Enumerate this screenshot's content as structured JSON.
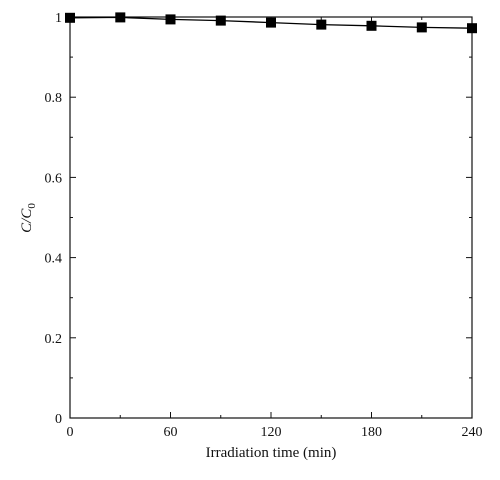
{
  "chart_data": {
    "type": "line",
    "xlabel": "Irradiation time (min)",
    "ylabel": "C/C",
    "ylabel_subscript": "0",
    "xlim": [
      0,
      240
    ],
    "ylim": [
      0,
      1.0
    ],
    "x_ticks": [
      0,
      60,
      120,
      180,
      240
    ],
    "y_ticks": [
      0,
      0.2,
      0.4,
      0.6,
      0.8,
      1
    ],
    "x_tick_labels": [
      "0",
      "60",
      "120",
      "180",
      "240"
    ],
    "y_tick_labels": [
      "0",
      "0.2",
      "0.4",
      "0.6",
      "0.8",
      "1"
    ],
    "grid": false,
    "marker": "square",
    "color": "#000000",
    "series": [
      {
        "x": [
          0,
          30,
          60,
          90,
          120,
          150,
          180,
          210,
          240
        ],
        "y": [
          0.998,
          0.999,
          0.994,
          0.991,
          0.986,
          0.981,
          0.978,
          0.974,
          0.972
        ]
      }
    ]
  }
}
